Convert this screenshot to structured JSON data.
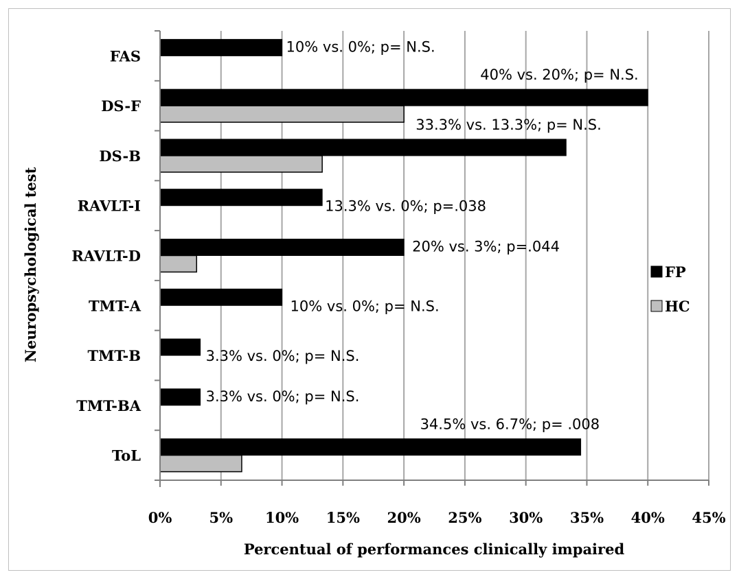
{
  "chart_data": {
    "type": "bar",
    "orientation": "horizontal",
    "categories": [
      "FAS",
      "DS-F",
      "DS-B",
      "RAVLT-I",
      "RAVLT-D",
      "TMT-A",
      "TMT-B",
      "TMT-BA",
      "ToL"
    ],
    "series": [
      {
        "name": "FP",
        "color": "#000000",
        "values": [
          10,
          40,
          33.3,
          13.3,
          20,
          10,
          3.3,
          3.3,
          34.5
        ]
      },
      {
        "name": "HC",
        "color": "#bfbfbf",
        "values": [
          0,
          20,
          13.3,
          0,
          3,
          0,
          0,
          0,
          6.7
        ]
      }
    ],
    "annotations": [
      "10% vs. 0%; p= N.S.",
      "40% vs. 20%; p= N.S.",
      "33.3% vs. 13.3%; p= N.S.",
      "13.3% vs. 0%; p=.038",
      "20% vs. 3%; p=.044",
      "10% vs. 0%; p= N.S.",
      "3.3% vs. 0%; p= N.S.",
      "3.3% vs. 0%; p= N.S.",
      "34.5% vs. 6.7%; p= .008"
    ],
    "xlabel": "Percentual of performances clinically impaired",
    "ylabel": "Neuropsychological test",
    "xlim": [
      0,
      45
    ],
    "xticks": [
      "0%",
      "5%",
      "10%",
      "15%",
      "20%",
      "25%",
      "30%",
      "35%",
      "40%",
      "45%"
    ],
    "grid": "vertical",
    "legend_position": "right"
  }
}
